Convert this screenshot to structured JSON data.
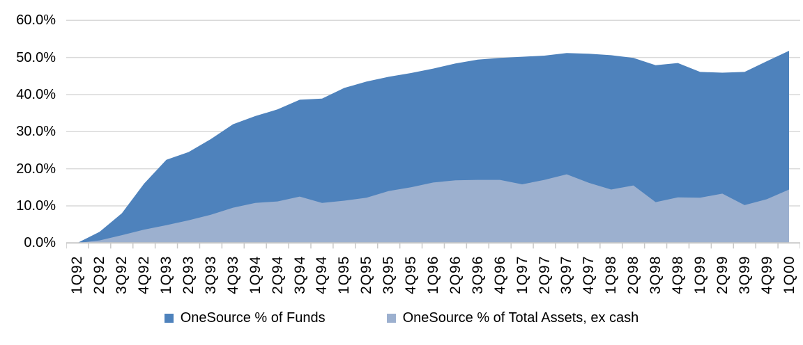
{
  "chart_data": {
    "type": "area",
    "overlap": true,
    "title": "",
    "xlabel": "",
    "ylabel": "",
    "ylim": [
      0,
      60
    ],
    "y_tick_step": 10,
    "grid": true,
    "legend_position": "bottom",
    "y_tick_labels_top_to_bottom": [
      "60.0%",
      "50.0%",
      "40.0%",
      "30.0%",
      "20.0%",
      "10.0%",
      "0.0%"
    ],
    "categories": [
      "1Q92",
      "2Q92",
      "3Q92",
      "4Q92",
      "1Q93",
      "2Q93",
      "3Q93",
      "4Q93",
      "1Q94",
      "2Q94",
      "3Q94",
      "4Q94",
      "1Q95",
      "2Q95",
      "3Q95",
      "4Q95",
      "1Q96",
      "2Q96",
      "3Q96",
      "4Q96",
      "1Q97",
      "2Q97",
      "3Q97",
      "4Q97",
      "1Q98",
      "2Q98",
      "3Q98",
      "4Q98",
      "1Q99",
      "2Q99",
      "3Q99",
      "4Q99",
      "1Q00"
    ],
    "series": [
      {
        "name": "OneSource % of Funds",
        "color": "#4E82BC",
        "unit": "%",
        "values": [
          0,
          3,
          8,
          16,
          22.4,
          24.5,
          28,
          32,
          34.2,
          36,
          38.6,
          38.9,
          41.8,
          43.5,
          44.8,
          45.8,
          47,
          48.4,
          49.4,
          49.9,
          50.2,
          50.5,
          51.2,
          51,
          50.6,
          49.9,
          47.9,
          48.5,
          46.1,
          45.9,
          46.1,
          49,
          51.8
        ]
      },
      {
        "name": "OneSource % of Total Assets, ex cash",
        "color": "#9CB0CF",
        "unit": "%",
        "values": [
          0,
          0.7,
          2.1,
          3.6,
          4.8,
          6.1,
          7.6,
          9.5,
          10.8,
          11.2,
          12.5,
          10.8,
          11.4,
          12.2,
          14,
          15,
          16.3,
          16.9,
          17,
          17,
          15.8,
          17,
          18.5,
          16.2,
          14.4,
          15.5,
          11,
          12.3,
          12.2,
          13.3,
          10.2,
          11.8,
          14.4
        ]
      }
    ]
  },
  "colors": {
    "gridline": "#D9D9D9",
    "axis": "#C9C9C9",
    "background": "#FFFFFF",
    "text": "#000000"
  }
}
